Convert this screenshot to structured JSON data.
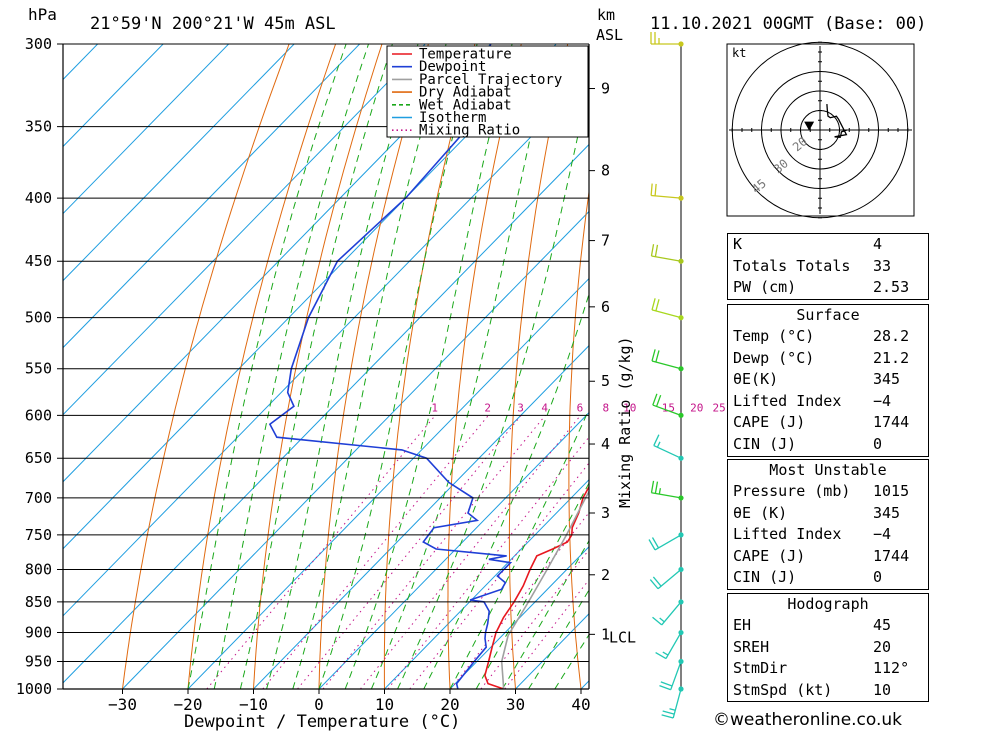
{
  "header": {
    "pressure_unit": "hPa",
    "location": "21°59'N 200°21'W 45m ASL",
    "km_unit": "km",
    "asl_unit": "ASL",
    "datetime": "11.10.2021 00GMT (Base: 00)"
  },
  "chart_data": {
    "type": "skew-t",
    "xlabel": "Dewpoint / Temperature (°C)",
    "ylabel_right": "Mixing Ratio (g/kg)",
    "pressure_ticks": [
      300,
      350,
      400,
      450,
      500,
      550,
      600,
      650,
      700,
      750,
      800,
      850,
      900,
      950,
      1000
    ],
    "pressure_labels": [
      "300",
      "350",
      "400",
      "450",
      "500",
      "550",
      "600",
      "650",
      "700",
      "750",
      "800",
      "850",
      "900",
      "950",
      "1000"
    ],
    "temp_ticks": [
      -30,
      -20,
      -10,
      0,
      10,
      20,
      30,
      40
    ],
    "temp_labels": [
      "−30",
      "−20",
      "−10",
      "0",
      "10",
      "20",
      "30",
      "40"
    ],
    "km_ticks": [
      {
        "p": 326,
        "label": "9"
      },
      {
        "p": 380,
        "label": "8"
      },
      {
        "p": 433,
        "label": "7"
      },
      {
        "p": 490,
        "label": "6"
      },
      {
        "p": 563,
        "label": "5"
      },
      {
        "p": 633,
        "label": "4"
      },
      {
        "p": 720,
        "label": "3"
      },
      {
        "p": 808,
        "label": "2"
      },
      {
        "p": 903,
        "label": "1"
      }
    ],
    "lcl": {
      "p": 905,
      "label": "LCL"
    },
    "mixing_ratio_labels": [
      "1",
      "2",
      "3",
      "4",
      "6",
      "8",
      "10",
      "15",
      "20",
      "25"
    ],
    "mixing_ratio_values": [
      1,
      2,
      3,
      4,
      6,
      8,
      10,
      15,
      20,
      25
    ],
    "legend": {
      "position": "top-center",
      "entries": [
        {
          "label": "Temperature",
          "color": "#e8171f",
          "style": "solid"
        },
        {
          "label": "Dewpoint",
          "color": "#1f3fd6",
          "style": "solid"
        },
        {
          "label": "Parcel Trajectory",
          "color": "#a0a0a0",
          "style": "solid"
        },
        {
          "label": "Dry Adiabat",
          "color": "#e06a10",
          "style": "solid"
        },
        {
          "label": "Wet Adiabat",
          "color": "#1aa81a",
          "style": "dashed"
        },
        {
          "label": "Isotherm",
          "color": "#1f9ee0",
          "style": "solid"
        },
        {
          "label": "Mixing Ratio",
          "color": "#c4158a",
          "style": "dotted"
        }
      ]
    },
    "series": [
      {
        "name": "Temperature",
        "color": "#e8171f",
        "points": [
          [
            1000,
            28.2
          ],
          [
            990,
            25
          ],
          [
            975,
            23.3
          ],
          [
            950,
            21.8
          ],
          [
            925,
            20.2
          ],
          [
            900,
            18.6
          ],
          [
            875,
            17.5
          ],
          [
            850,
            16.8
          ],
          [
            825,
            15.8
          ],
          [
            800,
            14.4
          ],
          [
            780,
            13.4
          ],
          [
            770,
            14.8
          ],
          [
            760,
            16.0
          ],
          [
            750,
            15.6
          ],
          [
            740,
            14.6
          ],
          [
            720,
            13.4
          ],
          [
            700,
            11.8
          ],
          [
            675,
            10.5
          ],
          [
            650,
            9.8
          ],
          [
            625,
            9.6
          ],
          [
            600,
            8.2
          ],
          [
            575,
            6.0
          ],
          [
            550,
            3.6
          ],
          [
            525,
            1.2
          ],
          [
            500,
            -1.6
          ],
          [
            475,
            -4.4
          ],
          [
            450,
            -6.6
          ],
          [
            425,
            -9.8
          ],
          [
            400,
            -13.4
          ],
          [
            375,
            -17.6
          ],
          [
            350,
            -21.8
          ],
          [
            325,
            -25.6
          ],
          [
            300,
            -31.5
          ]
        ]
      },
      {
        "name": "Dewpoint",
        "color": "#1f3fd6",
        "points": [
          [
            1000,
            21.2
          ],
          [
            990,
            20.2
          ],
          [
            950,
            19.6
          ],
          [
            925,
            19.3
          ],
          [
            910,
            17.8
          ],
          [
            900,
            17.0
          ],
          [
            885,
            16.0
          ],
          [
            865,
            14.4
          ],
          [
            850,
            12.2
          ],
          [
            847,
            9.8
          ],
          [
            830,
            13.0
          ],
          [
            820,
            12.6
          ],
          [
            810,
            10.4
          ],
          [
            790,
            10.4
          ],
          [
            785,
            6.6
          ],
          [
            780,
            8.8
          ],
          [
            770,
            -3.0
          ],
          [
            760,
            -6.0
          ],
          [
            740,
            -6.5
          ],
          [
            730,
            -1.0
          ],
          [
            720,
            -3.5
          ],
          [
            700,
            -5.0
          ],
          [
            680,
            -11.0
          ],
          [
            650,
            -18.0
          ],
          [
            640,
            -23.0
          ],
          [
            625,
            -44.0
          ],
          [
            610,
            -47.0
          ],
          [
            590,
            -46.0
          ],
          [
            575,
            -49.0
          ],
          [
            550,
            -52.0
          ],
          [
            500,
            -57.0
          ],
          [
            450,
            -61.0
          ],
          [
            400,
            -60.0
          ],
          [
            350,
            -61.0
          ],
          [
            325,
            -66.0
          ],
          [
            300,
            -70.0
          ]
        ]
      },
      {
        "name": "Parcel Trajectory",
        "color": "#a0a0a0",
        "points": [
          [
            1000,
            28.2
          ],
          [
            950,
            23.8
          ],
          [
            905,
            20.9
          ],
          [
            850,
            19.0
          ],
          [
            800,
            17.0
          ],
          [
            750,
            14.8
          ],
          [
            700,
            12.2
          ],
          [
            650,
            9.6
          ],
          [
            600,
            6.9
          ],
          [
            550,
            4.0
          ],
          [
            500,
            0.2
          ],
          [
            450,
            -4.6
          ],
          [
            400,
            -10.6
          ],
          [
            370,
            -15.0
          ]
        ]
      }
    ],
    "wind_barbs": [
      {
        "p": 300,
        "dir": 270,
        "spd": 25,
        "color": "#c8c81e"
      },
      {
        "p": 400,
        "dir": 275,
        "spd": 20,
        "color": "#c8c81e"
      },
      {
        "p": 450,
        "dir": 280,
        "spd": 20,
        "color": "#a8c81e"
      },
      {
        "p": 500,
        "dir": 285,
        "spd": 20,
        "color": "#a8d81e"
      },
      {
        "p": 550,
        "dir": 285,
        "spd": 20,
        "color": "#2ac82a"
      },
      {
        "p": 600,
        "dir": 290,
        "spd": 20,
        "color": "#2ac82a"
      },
      {
        "p": 650,
        "dir": 295,
        "spd": 15,
        "color": "#22c8b4"
      },
      {
        "p": 700,
        "dir": 280,
        "spd": 25,
        "color": "#2ac82a"
      },
      {
        "p": 750,
        "dir": 240,
        "spd": 20,
        "color": "#22c8b4"
      },
      {
        "p": 800,
        "dir": 230,
        "spd": 20,
        "color": "#22c8b4"
      },
      {
        "p": 850,
        "dir": 220,
        "spd": 15,
        "color": "#22c8b4"
      },
      {
        "p": 900,
        "dir": 210,
        "spd": 15,
        "color": "#22c8b4"
      },
      {
        "p": 950,
        "dir": 200,
        "spd": 20,
        "color": "#22c8b4"
      },
      {
        "p": 1000,
        "dir": 195,
        "spd": 25,
        "color": "#22c8b4"
      }
    ]
  },
  "hodograph": {
    "unit_label": "kt",
    "ring_labels": [
      "20",
      "30",
      "45"
    ],
    "ring_speeds": [
      10,
      20,
      30,
      45
    ]
  },
  "indices": {
    "general": [
      {
        "label": "K",
        "value": "4"
      },
      {
        "label": "Totals Totals",
        "value": "33"
      },
      {
        "label": "PW (cm)",
        "value": "2.53"
      }
    ],
    "surface": {
      "title": "Surface",
      "rows": [
        {
          "label": "Temp (°C)",
          "value": "28.2"
        },
        {
          "label": "Dewp (°C)",
          "value": "21.2"
        },
        {
          "label": "θE(K)",
          "value": "345"
        },
        {
          "label": "Lifted Index",
          "value": "−4"
        },
        {
          "label": "CAPE (J)",
          "value": "1744"
        },
        {
          "label": "CIN (J)",
          "value": "0"
        }
      ]
    },
    "most_unstable": {
      "title": "Most Unstable",
      "rows": [
        {
          "label": "Pressure (mb)",
          "value": "1015"
        },
        {
          "label": "θE (K)",
          "value": "345"
        },
        {
          "label": "Lifted Index",
          "value": "−4"
        },
        {
          "label": "CAPE (J)",
          "value": "1744"
        },
        {
          "label": "CIN (J)",
          "value": "0"
        }
      ]
    },
    "hodograph_box": {
      "title": "Hodograph",
      "rows": [
        {
          "label": "EH",
          "value": "45"
        },
        {
          "label": "SREH",
          "value": "20"
        },
        {
          "label": "StmDir",
          "value": "112°"
        },
        {
          "label": "StmSpd (kt)",
          "value": "10"
        }
      ]
    }
  },
  "credit": "©weatheronline.co.uk"
}
